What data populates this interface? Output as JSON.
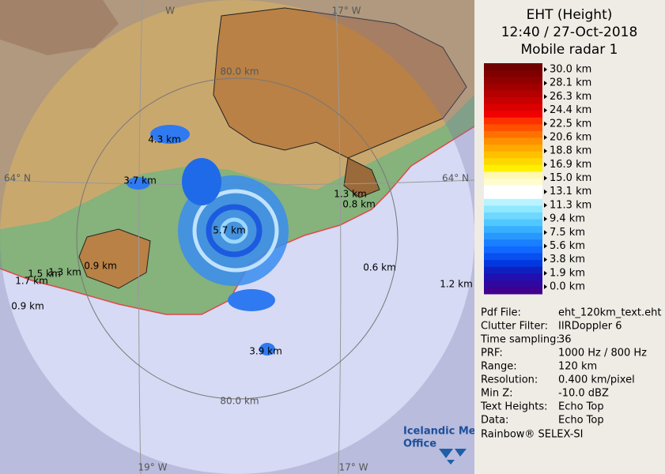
{
  "map": {
    "top_labels": [
      "W",
      "17° W"
    ],
    "range_labels": [
      "80.0 km",
      "80.0 km"
    ],
    "lat_labels": [
      "64° N",
      "64° N"
    ],
    "bottom_labels": [
      "19° W",
      "17° W"
    ],
    "echo_labels": [
      "4.3 km",
      "3.7 km",
      "5.7 km",
      "1.3 km",
      "0.8 km",
      "0.9 km",
      "1.5 km",
      "1.3 km",
      "1.7 km",
      "0.9 km",
      "0.6 km",
      "1.2 km",
      "3.9 km"
    ],
    "logo": [
      "Icelandic Met",
      "Office"
    ]
  },
  "panel": {
    "title": [
      "EHT (Height)",
      "12:40 / 27-Oct-2018",
      "Mobile radar 1"
    ],
    "legend": {
      "labels": [
        "30.0 km",
        "28.1 km",
        "26.3 km",
        "24.4 km",
        "22.5 km",
        "20.6 km",
        "18.8 km",
        "16.9 km",
        "15.0 km",
        "13.1 km",
        "11.3 km",
        "9.4 km",
        "7.5 km",
        "5.6 km",
        "3.8 km",
        "1.9 km",
        "0.0 km"
      ],
      "colors": [
        "#6e0000",
        "#7e0000",
        "#900000",
        "#a00000",
        "#b40000",
        "#c80000",
        "#dc0000",
        "#f00000",
        "#ff3000",
        "#ff5000",
        "#ff7000",
        "#ff9000",
        "#ffa800",
        "#ffc000",
        "#ffd800",
        "#fff000",
        "#fff8b0",
        "#fffcd0",
        "#ffffff",
        "#ffffff",
        "#b8f4ff",
        "#90e8ff",
        "#70d8ff",
        "#50c8ff",
        "#38b0ff",
        "#2898ff",
        "#1880ff",
        "#1068ff",
        "#0850f0",
        "#0038e0",
        "#1020c0",
        "#2010b0",
        "#3008a0",
        "#400090"
      ]
    },
    "info": [
      [
        "Pdf File:",
        "eht_120km_text.eht"
      ],
      [
        "Clutter Filter:",
        "IIRDoppler 6"
      ],
      [
        "Time sampling:",
        "36"
      ],
      [
        "PRF:",
        "1000 Hz / 800 Hz"
      ],
      [
        "Range:",
        "120 km"
      ],
      [
        "Resolution:",
        "0.400 km/pixel"
      ],
      [
        "Min Z:",
        "-10.0 dBZ"
      ],
      [
        "Text Heights:",
        "Echo Top"
      ],
      [
        "Data:",
        "Echo Top"
      ]
    ],
    "footer": "Rainbow® SELEX-SI"
  }
}
